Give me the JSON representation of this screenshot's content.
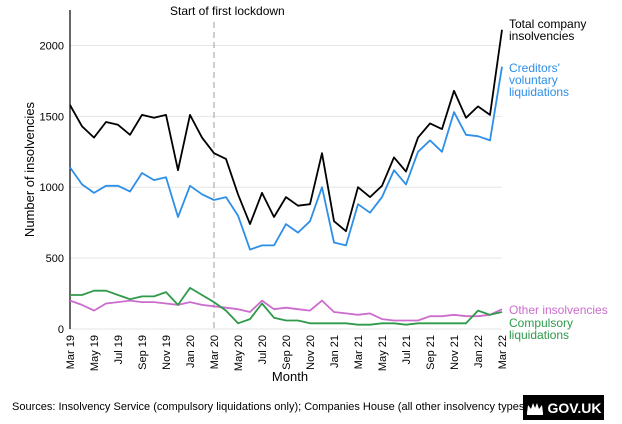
{
  "chart_data": {
    "type": "line",
    "title": "",
    "xlabel": "Month",
    "ylabel": "Number of insolvencies",
    "ylim": [
      0,
      2250
    ],
    "yticks": [
      0,
      500,
      1000,
      1500,
      2000
    ],
    "grid": "horizontal",
    "legend": "right, labels at line ends",
    "x": [
      "Mar 19",
      "Apr 19",
      "May 19",
      "Jun 19",
      "Jul 19",
      "Aug 19",
      "Sep 19",
      "Oct 19",
      "Nov 19",
      "Dec 19",
      "Jan 20",
      "Feb 20",
      "Mar 20",
      "Apr 20",
      "May 20",
      "Jun 20",
      "Jul 20",
      "Aug 20",
      "Sep 20",
      "Oct 20",
      "Nov 20",
      "Dec 20",
      "Jan 21",
      "Feb 21",
      "Mar 21",
      "Apr 21",
      "May 21",
      "Jun 21",
      "Jul 21",
      "Aug 21",
      "Sep 21",
      "Oct 21",
      "Nov 21",
      "Dec 21",
      "Jan 22",
      "Feb 22",
      "Mar 22"
    ],
    "x_tick_labels": [
      "Mar 19",
      "May 19",
      "Jul 19",
      "Sep 19",
      "Nov 19",
      "Jan 20",
      "Mar 20",
      "May 20",
      "Jul 20",
      "Sep 20",
      "Nov 20",
      "Jan 21",
      "Mar 21",
      "May 21",
      "Jul 21",
      "Sep 21",
      "Nov 21",
      "Jan 22",
      "Mar 22"
    ],
    "annotations": [
      {
        "text": "Start of first lockdown",
        "x": "Mar 20"
      }
    ],
    "series": [
      {
        "name": "Total company insolvencies",
        "label_lines": [
          "Total company",
          "insolvencies"
        ],
        "color": "#000000",
        "values": [
          1580,
          1430,
          1350,
          1460,
          1440,
          1370,
          1510,
          1490,
          1510,
          1120,
          1510,
          1350,
          1240,
          1200,
          950,
          740,
          960,
          790,
          930,
          870,
          880,
          1240,
          760,
          690,
          1000,
          930,
          1010,
          1210,
          1110,
          1350,
          1450,
          1410,
          1680,
          1490,
          1570,
          1510,
          2110
        ]
      },
      {
        "name": "Creditors' voluntary liquidations",
        "label_lines": [
          "Creditors'",
          "voluntary",
          "liquidations"
        ],
        "color": "#2e8fe8",
        "values": [
          1140,
          1020,
          960,
          1010,
          1010,
          970,
          1100,
          1050,
          1070,
          790,
          1010,
          950,
          910,
          930,
          800,
          560,
          590,
          590,
          740,
          680,
          760,
          1000,
          610,
          590,
          880,
          820,
          930,
          1120,
          1020,
          1250,
          1330,
          1250,
          1530,
          1370,
          1360,
          1330,
          1850
        ]
      },
      {
        "name": "Other insolvencies",
        "label_lines": [
          "Other insolvencies"
        ],
        "color": "#cc6ccc",
        "values": [
          200,
          170,
          130,
          180,
          190,
          200,
          190,
          190,
          180,
          170,
          190,
          170,
          160,
          150,
          140,
          120,
          200,
          140,
          150,
          140,
          130,
          200,
          120,
          110,
          100,
          110,
          70,
          60,
          60,
          60,
          90,
          90,
          100,
          90,
          90,
          100,
          140
        ]
      },
      {
        "name": "Compulsory liquidations",
        "label_lines": [
          "Compulsory",
          "liquidations"
        ],
        "color": "#2e9a4a",
        "values": [
          240,
          240,
          270,
          270,
          240,
          210,
          230,
          230,
          260,
          170,
          290,
          240,
          190,
          130,
          40,
          70,
          180,
          80,
          60,
          60,
          40,
          40,
          40,
          40,
          30,
          30,
          40,
          40,
          30,
          40,
          40,
          40,
          40,
          40,
          130,
          100,
          120
        ]
      }
    ]
  },
  "footer": {
    "source_note": "Sources: Insolvency Service (compulsory liquidations only); Companies House (all other insolvency types)",
    "logo_text": "GOV.UK"
  }
}
